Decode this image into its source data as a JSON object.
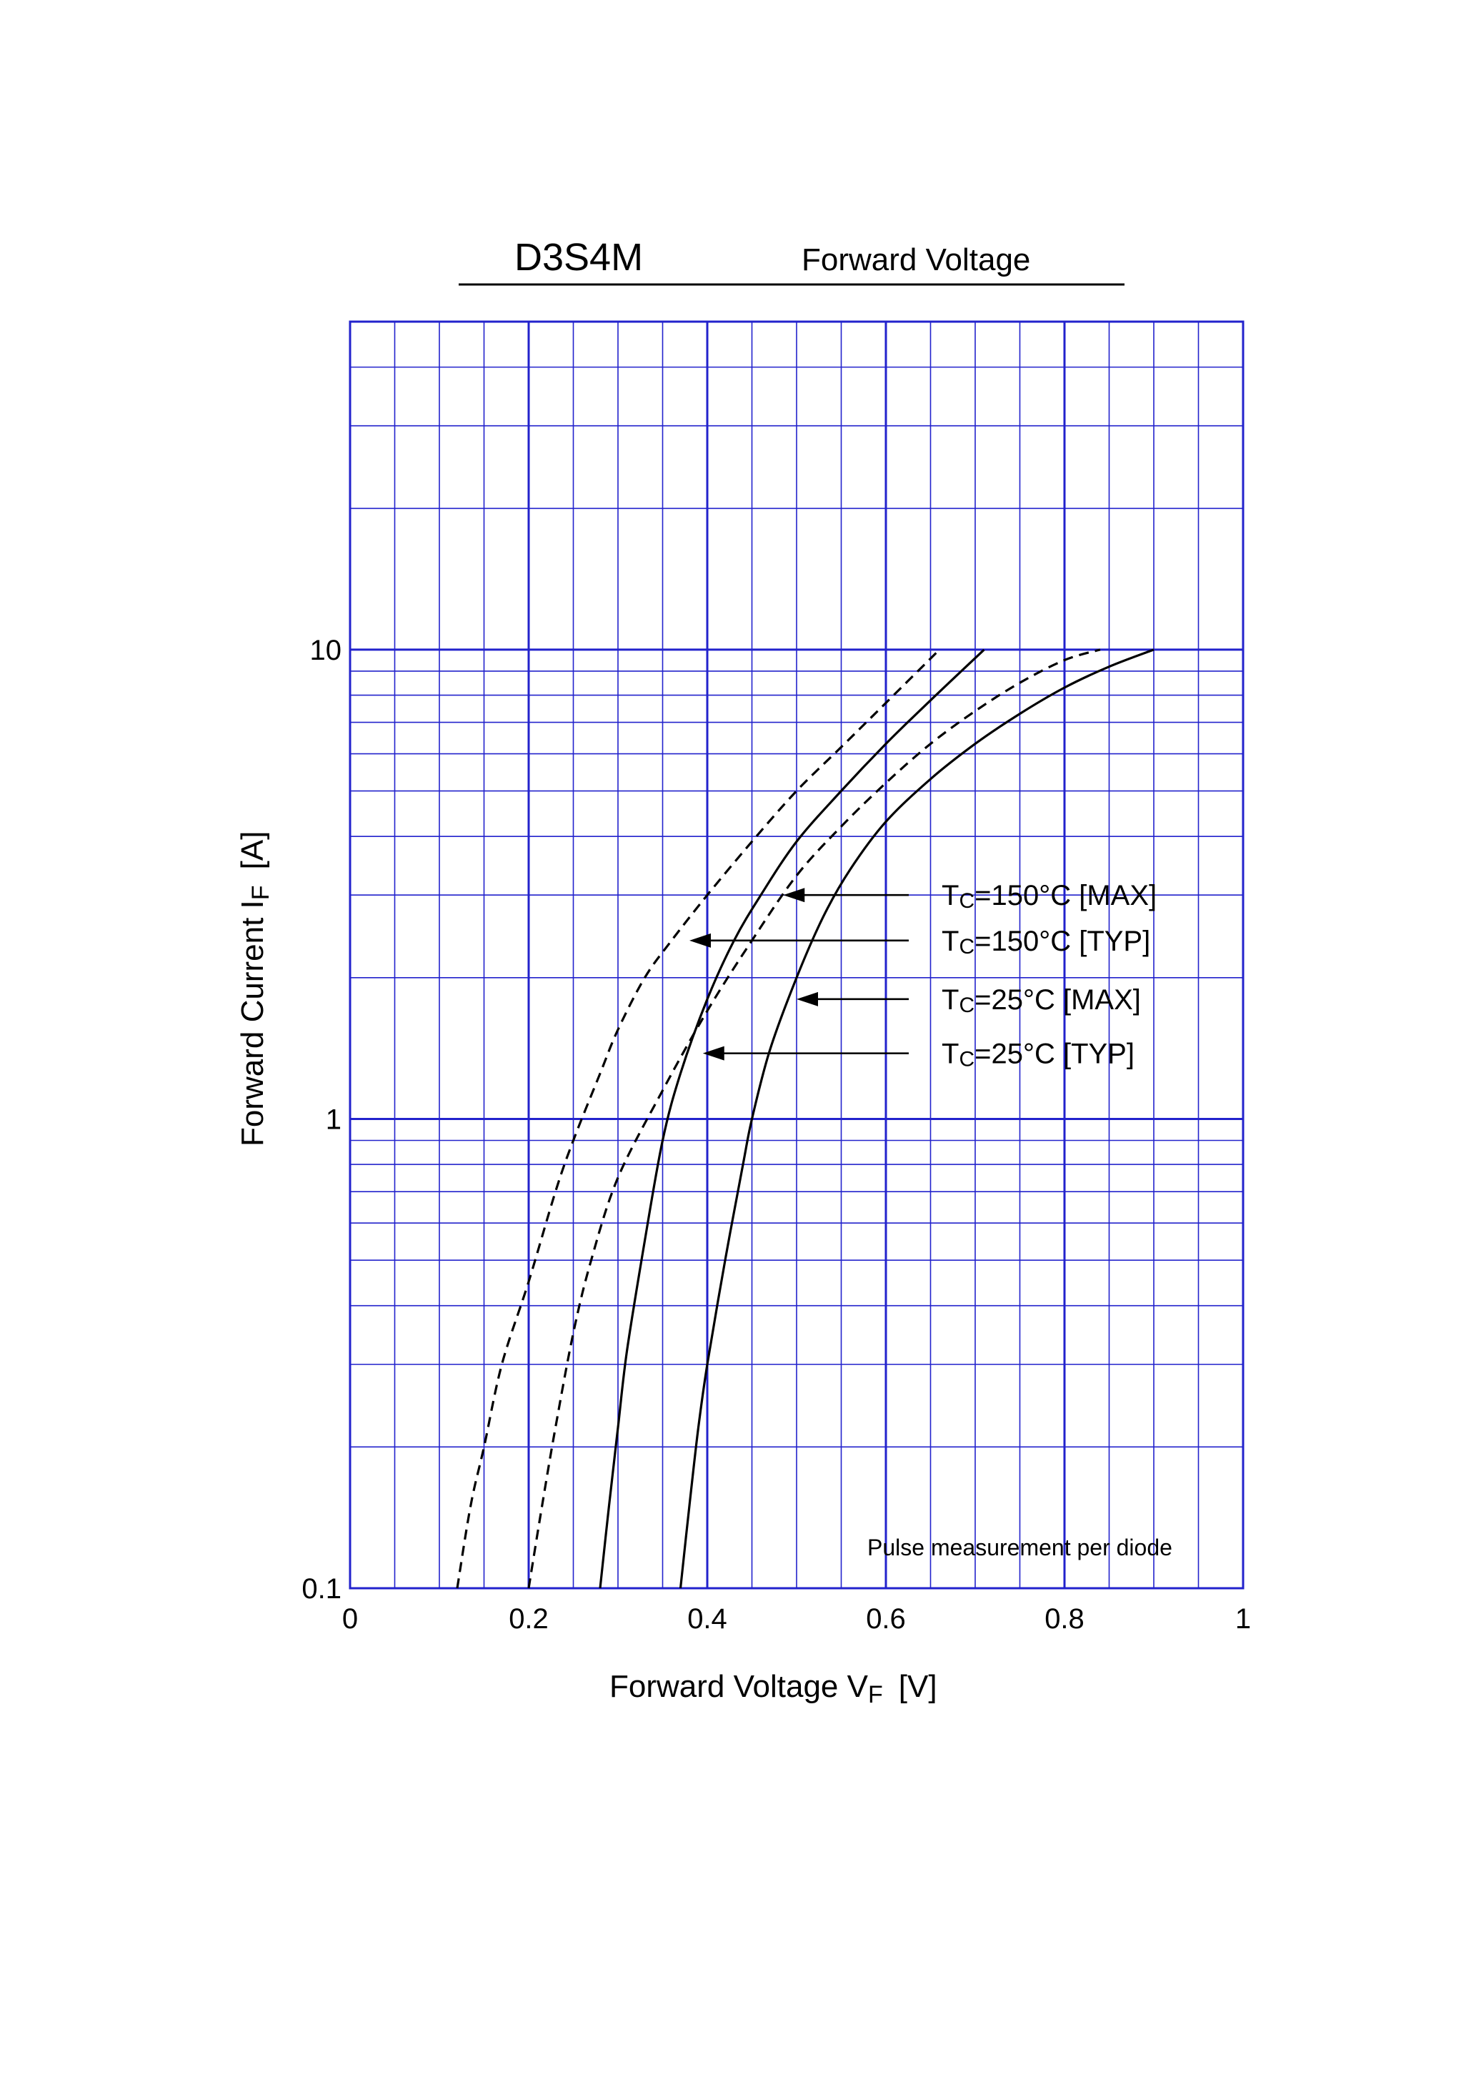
{
  "header": {
    "part_number": "D3S4M",
    "subtitle": "Forward  Voltage"
  },
  "chart_data": {
    "type": "line",
    "x_scale": "linear",
    "y_scale": "log",
    "xlabel": "Forward Voltage  V",
    "xlabel_sub": "F",
    "xlabel_unit": "[V]",
    "ylabel": "Forward Current  I",
    "ylabel_sub": "F",
    "ylabel_unit": "[A]",
    "xlim": [
      0,
      1
    ],
    "ylim": [
      0.1,
      50
    ],
    "x_ticks": [
      0,
      0.2,
      0.4,
      0.6,
      0.8,
      1
    ],
    "x_tick_labels": [
      "0",
      "0.2",
      "0.4",
      "0.6",
      "0.8",
      "1"
    ],
    "y_ticks": [
      0.1,
      1,
      10
    ],
    "y_tick_labels": [
      "0.1",
      "1",
      "10"
    ],
    "grid": true,
    "grid_color": "#2222cc",
    "note": "Pulse measurement per diode",
    "series": [
      {
        "name": "Tc=150°C [MAX]",
        "style": "dashed",
        "points": [
          [
            0.2,
            0.1
          ],
          [
            0.215,
            0.15
          ],
          [
            0.23,
            0.22
          ],
          [
            0.25,
            0.35
          ],
          [
            0.27,
            0.5
          ],
          [
            0.3,
            0.75
          ],
          [
            0.35,
            1.15
          ],
          [
            0.4,
            1.7
          ],
          [
            0.45,
            2.4
          ],
          [
            0.5,
            3.3
          ],
          [
            0.55,
            4.2
          ],
          [
            0.6,
            5.2
          ],
          [
            0.65,
            6.3
          ],
          [
            0.7,
            7.4
          ],
          [
            0.75,
            8.5
          ],
          [
            0.8,
            9.5
          ],
          [
            0.84,
            10.0
          ]
        ]
      },
      {
        "name": "Tc=150°C [TYP]",
        "style": "dashed",
        "points": [
          [
            0.12,
            0.1
          ],
          [
            0.135,
            0.15
          ],
          [
            0.15,
            0.2
          ],
          [
            0.17,
            0.3
          ],
          [
            0.2,
            0.45
          ],
          [
            0.23,
            0.7
          ],
          [
            0.25,
            0.9
          ],
          [
            0.28,
            1.25
          ],
          [
            0.3,
            1.55
          ],
          [
            0.33,
            2.0
          ],
          [
            0.36,
            2.4
          ],
          [
            0.4,
            3.0
          ],
          [
            0.45,
            3.9
          ],
          [
            0.5,
            5.0
          ],
          [
            0.55,
            6.2
          ],
          [
            0.6,
            7.7
          ],
          [
            0.66,
            10.0
          ]
        ]
      },
      {
        "name": "Tc=25°C [MAX]",
        "style": "solid",
        "points": [
          [
            0.37,
            0.1
          ],
          [
            0.38,
            0.15
          ],
          [
            0.39,
            0.22
          ],
          [
            0.4,
            0.3
          ],
          [
            0.42,
            0.5
          ],
          [
            0.44,
            0.8
          ],
          [
            0.45,
            1.0
          ],
          [
            0.47,
            1.4
          ],
          [
            0.5,
            2.0
          ],
          [
            0.53,
            2.7
          ],
          [
            0.56,
            3.4
          ],
          [
            0.6,
            4.3
          ],
          [
            0.65,
            5.3
          ],
          [
            0.7,
            6.3
          ],
          [
            0.75,
            7.3
          ],
          [
            0.8,
            8.3
          ],
          [
            0.85,
            9.2
          ],
          [
            0.9,
            10.0
          ]
        ]
      },
      {
        "name": "Tc=25°C [TYP]",
        "style": "solid",
        "points": [
          [
            0.28,
            0.1
          ],
          [
            0.29,
            0.15
          ],
          [
            0.3,
            0.22
          ],
          [
            0.31,
            0.32
          ],
          [
            0.33,
            0.55
          ],
          [
            0.35,
            0.9
          ],
          [
            0.37,
            1.25
          ],
          [
            0.4,
            1.8
          ],
          [
            0.43,
            2.4
          ],
          [
            0.46,
            3.0
          ],
          [
            0.5,
            3.9
          ],
          [
            0.55,
            5.0
          ],
          [
            0.6,
            6.3
          ],
          [
            0.65,
            7.8
          ],
          [
            0.71,
            10.0
          ]
        ]
      }
    ],
    "annotations": [
      {
        "label_prefix": "T",
        "label_sub": "C",
        "label_rest": "=150°C [MAX]",
        "y_value": 3.0,
        "arrow_x": 0.485
      },
      {
        "label_prefix": "T",
        "label_sub": "C",
        "label_rest": "=150°C [TYP]",
        "y_value": 2.4,
        "arrow_x": 0.38
      },
      {
        "label_prefix": "T",
        "label_sub": "C",
        "label_rest": "=25°C [MAX]",
        "y_value": 1.8,
        "arrow_x": 0.5
      },
      {
        "label_prefix": "T",
        "label_sub": "C",
        "label_rest": "=25°C [TYP]",
        "y_value": 1.38,
        "arrow_x": 0.395
      }
    ]
  }
}
